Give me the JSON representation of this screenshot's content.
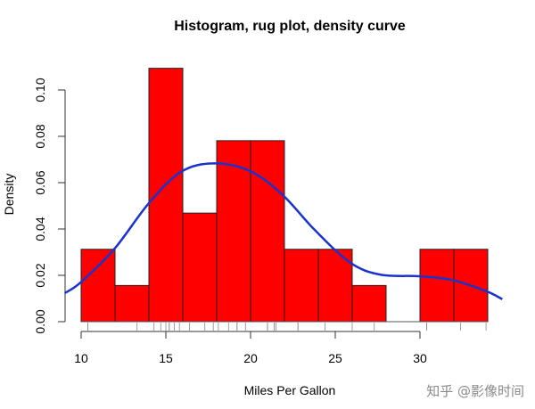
{
  "chart_data": {
    "type": "bar",
    "title": "Histogram, rug plot, density curve",
    "xlabel": "Miles Per Gallon",
    "ylabel": "Density",
    "xlim": [
      9.03,
      34.97
    ],
    "ylim": [
      0,
      0.11
    ],
    "grid": false,
    "bar_color": "#ff0000",
    "curve_color": "#1a33cc",
    "bins": [
      [
        10,
        12
      ],
      [
        12,
        14
      ],
      [
        14,
        16
      ],
      [
        16,
        18
      ],
      [
        18,
        20
      ],
      [
        20,
        22
      ],
      [
        22,
        24
      ],
      [
        24,
        26
      ],
      [
        26,
        28
      ],
      [
        28,
        30
      ],
      [
        30,
        32
      ],
      [
        32,
        34
      ]
    ],
    "values": [
      0.03125,
      0.015625,
      0.109375,
      0.046875,
      0.078125,
      0.078125,
      0.03125,
      0.03125,
      0.015625,
      0,
      0.03125,
      0.03125
    ],
    "x_ticks": [
      "10",
      "15",
      "20",
      "25",
      "30"
    ],
    "y_ticks": [
      "0.00",
      "0.02",
      "0.04",
      "0.06",
      "0.08",
      "0.10"
    ],
    "rug": [
      10.4,
      10.4,
      13.3,
      14.3,
      14.7,
      15.0,
      15.2,
      15.2,
      15.5,
      15.8,
      16.4,
      17.3,
      17.8,
      18.1,
      18.7,
      19.2,
      19.2,
      19.7,
      21.0,
      21.0,
      21.4,
      21.4,
      21.5,
      22.8,
      22.8,
      24.4,
      26.0,
      27.3,
      30.4,
      30.4,
      32.4,
      33.9
    ],
    "density_curve": {
      "x": [
        9.03,
        9.98,
        11.96,
        13.98,
        15.9,
        17.84,
        19.95,
        21.88,
        23.8,
        25.9,
        27.67,
        29.95,
        31.88,
        33.9,
        34.86
      ],
      "y": [
        0.0123,
        0.017,
        0.0314,
        0.051,
        0.0647,
        0.0683,
        0.0651,
        0.0548,
        0.0395,
        0.0254,
        0.0203,
        0.0196,
        0.018,
        0.0132,
        0.0097
      ]
    }
  },
  "watermark": "知乎 @影像时间"
}
